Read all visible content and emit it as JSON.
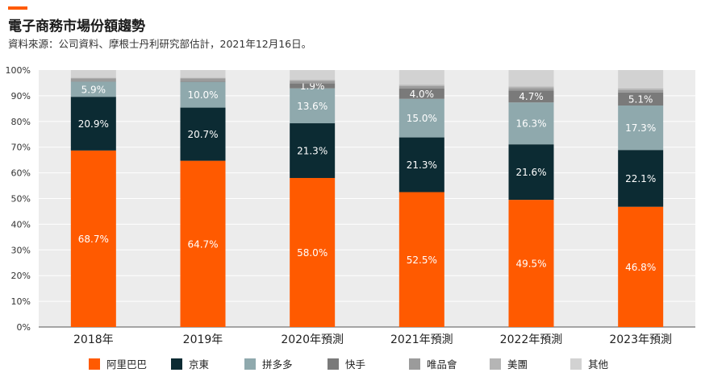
{
  "header": {
    "title": "電子商務市場份額趨勢",
    "subtitle": "資料來源：公司資料、摩根士丹利研究部估計，2021年12月16日。"
  },
  "colors": {
    "accent": "#ff5a00",
    "plot_bg": "#ececec",
    "gridline": "#ffffff"
  },
  "chart_data": {
    "type": "bar",
    "stacked": true,
    "categories": [
      "2018年",
      "2019年",
      "2020年預測",
      "2021年預測",
      "2022年預測",
      "2023年預測"
    ],
    "ylim": [
      0,
      100
    ],
    "yticks": [
      "0%",
      "10%",
      "20%",
      "30%",
      "40%",
      "50%",
      "60%",
      "70%",
      "80%",
      "90%",
      "100%"
    ],
    "grid": true,
    "legend_position": "bottom",
    "series": [
      {
        "name": "阿里巴巴",
        "color": "#ff5a00",
        "text_color": "#ffffff",
        "values": [
          68.7,
          64.7,
          58.0,
          52.5,
          49.5,
          46.8
        ],
        "labels": [
          "68.7%",
          "64.7%",
          "58.0%",
          "52.5%",
          "49.5%",
          "46.8%"
        ]
      },
      {
        "name": "京東",
        "color": "#0c2b33",
        "text_color": "#ffffff",
        "values": [
          20.9,
          20.7,
          21.3,
          21.3,
          21.6,
          22.1
        ],
        "labels": [
          "20.9%",
          "20.7%",
          "21.3%",
          "21.3%",
          "21.6%",
          "22.1%"
        ]
      },
      {
        "name": "拼多多",
        "color": "#8fa9ad",
        "text_color": "#ffffff",
        "values": [
          5.9,
          10.0,
          13.6,
          15.0,
          16.3,
          17.3
        ],
        "labels": [
          "5.9%",
          "10.0%",
          "13.6%",
          "15.0%",
          "16.3%",
          "17.3%"
        ]
      },
      {
        "name": "快手",
        "color": "#7a7a7a",
        "text_color": "#ffffff",
        "values": [
          0.1,
          0.2,
          1.9,
          4.0,
          4.7,
          5.1
        ],
        "labels": [
          "",
          "",
          "1.9%",
          "4.0%",
          "4.7%",
          "5.1%"
        ]
      },
      {
        "name": "唯品會",
        "color": "#9b9b9b",
        "text_color": "#ffffff",
        "values": [
          1.2,
          1.1,
          1.0,
          1.0,
          0.9,
          0.9
        ],
        "labels": [
          "",
          "",
          "",
          "",
          "",
          ""
        ]
      },
      {
        "name": "美團",
        "color": "#b5b5b5",
        "text_color": "#ffffff",
        "values": [
          0.2,
          0.3,
          0.4,
          0.5,
          0.6,
          0.7
        ],
        "labels": [
          "",
          "",
          "",
          "",
          "",
          ""
        ]
      },
      {
        "name": "其他",
        "color": "#d2d2d2",
        "text_color": "#ffffff",
        "values": [
          3.0,
          3.0,
          3.8,
          5.7,
          6.4,
          7.1
        ],
        "labels": [
          "",
          "",
          "",
          "",
          "",
          ""
        ]
      }
    ]
  }
}
